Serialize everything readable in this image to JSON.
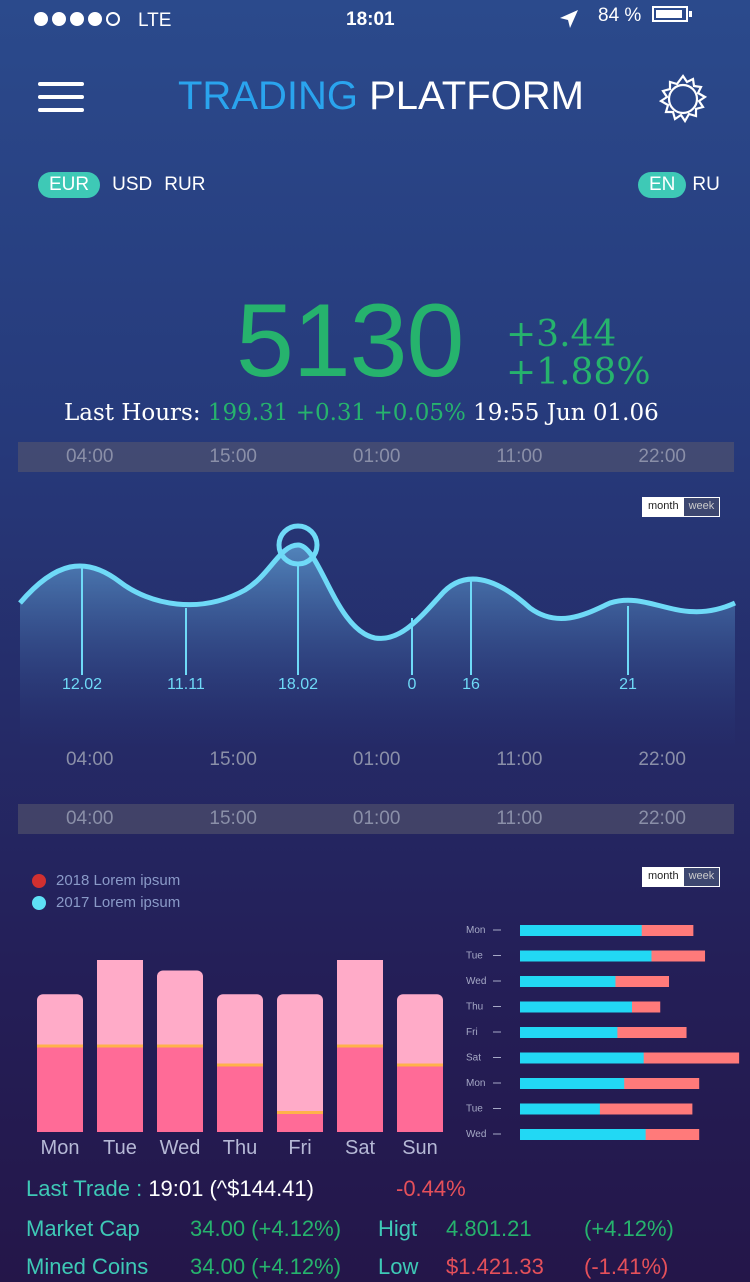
{
  "status_bar": {
    "carrier": "LTE",
    "time": "18:01",
    "battery": "84 %"
  },
  "header": {
    "title_part1": "TRADING",
    "title_part2": "PLATFORM"
  },
  "currencies": {
    "active": "EUR",
    "items": [
      "USD",
      "RUR"
    ]
  },
  "languages": {
    "active": "EN",
    "other": "RU"
  },
  "ticker": {
    "value": "5130",
    "change_abs": "+3.44",
    "change_pct": "+1.88%",
    "last_label": "Last Hours:",
    "last_values": "199.31 +0.31  +0.05%",
    "last_time": "19:55 Jun 01.06"
  },
  "time_axis": [
    "04:00",
    "15:00",
    "01:00",
    "11:00",
    "22:00"
  ],
  "toggle": {
    "month": "month",
    "week": "week"
  },
  "line_chart": {
    "type": "line",
    "point_labels": [
      "12.02",
      "11.11",
      "18.02",
      "0",
      "16",
      "21"
    ],
    "colors": {
      "line": "#6fdaf7",
      "fill_top": "#4c7fb8"
    }
  },
  "legend": [
    {
      "label": "2018 Lorem ipsum",
      "color": "#d13030"
    },
    {
      "label": "2017 Lorem ipsum",
      "color": "#5ee0f5"
    }
  ],
  "chart_data": [
    {
      "type": "bar",
      "categories": [
        "Mon",
        "Tue",
        "Wed",
        "Thu",
        "Fri",
        "Sat",
        "Sun"
      ],
      "series": [
        {
          "values": [
            90,
            90,
            90,
            70,
            20,
            90,
            70
          ],
          "color": "#ff6b97"
        },
        {
          "values": [
            145,
            190,
            170,
            145,
            145,
            190,
            145
          ],
          "color": "#ffabc8"
        }
      ],
      "ylim": [
        0,
        200
      ]
    },
    {
      "type": "bar",
      "orientation": "horizontal",
      "categories": [
        "Mon",
        "Tue",
        "Wed",
        "Thu",
        "Fri",
        "Sat",
        "Mon",
        "Tue",
        "Wed"
      ],
      "series": [
        {
          "values": [
            125,
            135,
            98,
            115,
            100,
            127,
            107,
            82,
            129
          ],
          "color": "#22d8f4"
        },
        {
          "values": [
            178,
            190,
            153,
            144,
            171,
            225,
            184,
            177,
            184
          ],
          "color": "#ff7a7a"
        }
      ],
      "xlim": [
        0,
        230
      ]
    }
  ],
  "stats": {
    "last_trade_label": "Last Trade :",
    "last_trade_value": "19:01 (^$144.41)",
    "last_trade_change": "-0.44%",
    "market_cap_label": "Market Cap",
    "market_cap_value": "34.00 (+4.12%)",
    "high_label": "Higt",
    "high_value": "4.801.21",
    "high_change": "(+4.12%)",
    "mined_label": "Mined Coins",
    "mined_value": "34.00 (+4.12%)",
    "low_label": "Low",
    "low_value": "$1.421.33",
    "low_change": "(-1.41%)"
  }
}
